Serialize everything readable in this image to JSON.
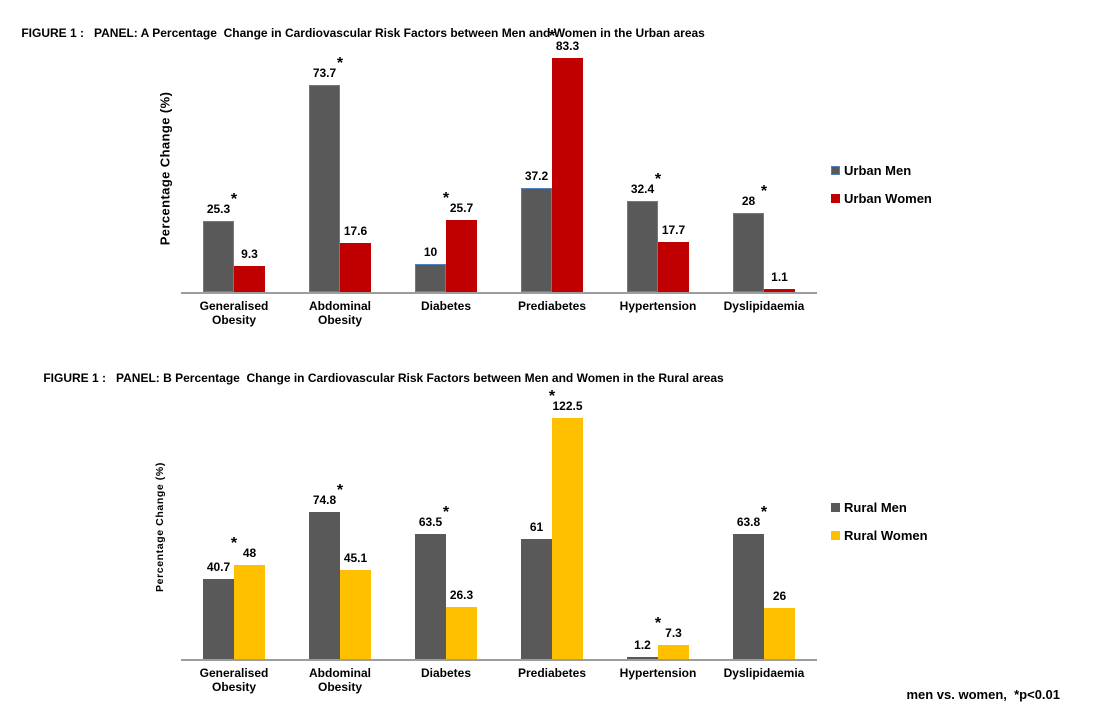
{
  "titles": [
    {
      "prefix": "FIGURE 1 :",
      "text": "PANEL: A Percentage  Change in Cardiovascular Risk Factors between Men and Women in the Urban areas"
    },
    {
      "prefix": "FIGURE 1 :",
      "text": "PANEL: B Percentage  Change in Cardiovascular Risk Factors between Men and Women in the Rural areas"
    }
  ],
  "significance_marker": "*",
  "footnote": "men vs. women,  *p<0.01",
  "chart_data": [
    {
      "type": "bar",
      "panel": "A",
      "title": "FIGURE 1 : PANEL: A Percentage Change in Cardiovascular Risk Factors between Men and Women in the Urban areas",
      "categories": [
        "Generalised\nObesity",
        "Abdominal\nObesity",
        "Diabetes",
        "Prediabetes",
        "Hypertension",
        "Dyslipidaemia"
      ],
      "series": [
        {
          "name": "Urban Men",
          "values": [
            25.3,
            73.7,
            10,
            37.2,
            32.4,
            28
          ],
          "labels": [
            "25.3",
            "73.7",
            "10",
            "37.2",
            "32.4",
            "28"
          ],
          "color": "#595959",
          "border_color": "#4f81bd"
        },
        {
          "name": "Urban Women",
          "values": [
            9.3,
            17.6,
            25.7,
            83.3,
            17.7,
            1.1
          ],
          "labels": [
            "9.3",
            "17.6",
            "25.7",
            "83.3",
            "17.7",
            "1.1"
          ],
          "color": "#c00000",
          "border_color": ""
        }
      ],
      "significance": [
        true,
        true,
        true,
        true,
        true,
        true
      ],
      "xlabel": "",
      "ylabel": "Percentage Change (%)",
      "ylim": [
        0,
        85
      ],
      "grid": false,
      "legend_position": "right",
      "axis_color": "#9d9d9d"
    },
    {
      "type": "bar",
      "panel": "B",
      "title": "FIGURE 1 : PANEL: B Percentage Change in Cardiovascular Risk Factors between Men and Women in the Rural areas",
      "categories": [
        "Generalised\nObesity",
        "Abdominal\nObesity",
        "Diabetes",
        "Prediabetes",
        "Hypertension",
        "Dyslipidaemia"
      ],
      "series": [
        {
          "name": "Rural Men",
          "values": [
            40.7,
            74.8,
            63.5,
            61,
            1.2,
            63.8
          ],
          "labels": [
            "40.7",
            "74.8",
            "63.5",
            "61",
            "1.2",
            "63.8"
          ],
          "color": "#595959",
          "border_color": ""
        },
        {
          "name": "Rural Women",
          "values": [
            48,
            45.1,
            26.3,
            122.5,
            7.3,
            26
          ],
          "labels": [
            "48",
            "45.1",
            "26.3",
            "122.5",
            "7.3",
            "26"
          ],
          "color": "#ffc000",
          "border_color": ""
        }
      ],
      "significance": [
        true,
        true,
        true,
        true,
        true,
        true
      ],
      "xlabel": "",
      "ylabel": "Percentage Change (%)",
      "ylim": [
        0,
        125
      ],
      "grid": false,
      "legend_position": "right",
      "axis_color": "#9d9d9d"
    }
  ]
}
